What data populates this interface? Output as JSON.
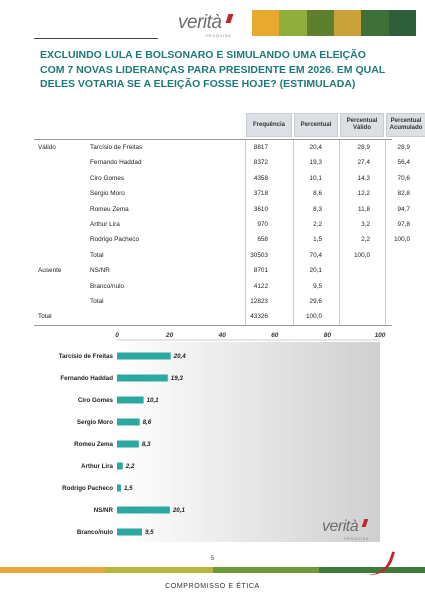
{
  "header": {
    "logo_text": "verità",
    "logo_sub": "PESQUISA",
    "strip_colors": [
      "#e8a930",
      "#8fae3c",
      "#5e7f2c",
      "#c9a23a",
      "#3f6f39",
      "#2f5e3a"
    ]
  },
  "title": "EXCLUINDO LULA E BOLSONARO E SIMULANDO UMA ELEIÇÃO COM 7 NOVAS LIDERANÇAS PARA PRESIDENTE EM 2026. EM QUAL DELES VOTARIA SE A ELEIÇÃO FOSSE HOJE? (ESTIMULADA)",
  "table": {
    "headers": [
      "Frequência",
      "Percentual",
      "Percentual Válido",
      "Percentual Acumulado"
    ],
    "rows": [
      {
        "group": "Válido",
        "label": "Tarcísio de Freitas",
        "freq": "8817",
        "perc": "20,4",
        "valid": "28,9",
        "acum": "28,9"
      },
      {
        "group": "",
        "label": "Fernando Haddad",
        "freq": "8372",
        "perc": "19,3",
        "valid": "27,4",
        "acum": "56,4"
      },
      {
        "group": "",
        "label": "Ciro Gomes",
        "freq": "4358",
        "perc": "10,1",
        "valid": "14,3",
        "acum": "70,6"
      },
      {
        "group": "",
        "label": "Sergio Moro",
        "freq": "3718",
        "perc": "8,6",
        "valid": "12,2",
        "acum": "82,8"
      },
      {
        "group": "",
        "label": "Romeu Zema",
        "freq": "3610",
        "perc": "8,3",
        "valid": "11,8",
        "acum": "94,7"
      },
      {
        "group": "",
        "label": "Arthur Lira",
        "freq": "970",
        "perc": "2,2",
        "valid": "3,2",
        "acum": "97,8"
      },
      {
        "group": "",
        "label": "Rodrigo Pacheco",
        "freq": "658",
        "perc": "1,5",
        "valid": "2,2",
        "acum": "100,0"
      },
      {
        "group": "",
        "label": "Total",
        "freq": "30503",
        "perc": "70,4",
        "valid": "100,0",
        "acum": ""
      },
      {
        "group": "Ausente",
        "label": "NS/NR",
        "freq": "8701",
        "perc": "20,1",
        "valid": "",
        "acum": ""
      },
      {
        "group": "",
        "label": "Branco/nulo",
        "freq": "4122",
        "perc": "9,5",
        "valid": "",
        "acum": ""
      },
      {
        "group": "",
        "label": "Total",
        "freq": "12823",
        "perc": "29,6",
        "valid": "",
        "acum": ""
      },
      {
        "group": "Total",
        "label": "",
        "freq": "43326",
        "perc": "100,0",
        "valid": "",
        "acum": ""
      }
    ]
  },
  "chart_data": {
    "type": "bar",
    "orientation": "horizontal",
    "categories": [
      "Tarcísio de Freitas",
      "Fernando Haddad",
      "Ciro Gomes",
      "Sergio Moro",
      "Romeu Zema",
      "Arthur Lira",
      "Rodrigo Pacheco",
      "NS/NR",
      "Branco/nulo"
    ],
    "values": [
      20.4,
      19.3,
      10.1,
      8.6,
      8.3,
      2.2,
      1.5,
      20.1,
      9.5
    ],
    "value_labels": [
      "20,4",
      "19,3",
      "10,1",
      "8,6",
      "8,3",
      "2,2",
      "1,5",
      "20,1",
      "9,5"
    ],
    "xlim": [
      0,
      100
    ],
    "x_ticks": [
      0,
      20,
      40,
      60,
      80,
      100
    ],
    "bar_color": "#2ba8a0",
    "background_gradient": [
      "#ffffff",
      "#cfcfcf"
    ],
    "grid": false
  },
  "footer": {
    "page_number": "5",
    "text": "COMPROMISSO E ÉTICA",
    "band_colors": [
      "#e6a83a",
      "#b4b83c",
      "#6f9a3a",
      "#3e7a3a"
    ],
    "accent": "#c4262e"
  }
}
